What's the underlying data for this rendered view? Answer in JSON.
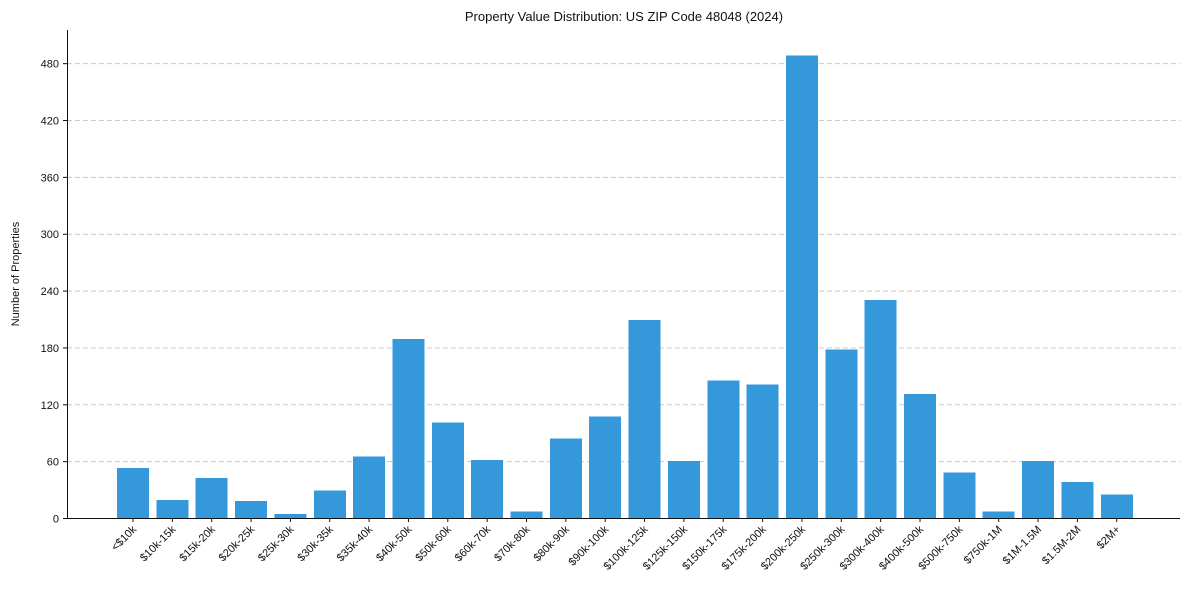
{
  "chart_data": {
    "type": "bar",
    "title": "Property Value Distribution: US ZIP Code 48048 (2024)",
    "xlabel": "",
    "ylabel": "Number of Properties",
    "categories": [
      "<$10k",
      "$10k-15k",
      "$15k-20k",
      "$20k-25k",
      "$25k-30k",
      "$30k-35k",
      "$35k-40k",
      "$40k-50k",
      "$50k-60k",
      "$60k-70k",
      "$70k-80k",
      "$80k-90k",
      "$90k-100k",
      "$100k-125k",
      "$125k-150k",
      "$150k-175k",
      "$175k-200k",
      "$200k-250k",
      "$250k-300k",
      "$300k-400k",
      "$400k-500k",
      "$500k-750k",
      "$750k-1M",
      "$1M-1.5M",
      "$1.5M-2M",
      "$2M+"
    ],
    "values": [
      53,
      19,
      42,
      18,
      4,
      29,
      65,
      189,
      101,
      61,
      7,
      84,
      107,
      209,
      60,
      145,
      141,
      488,
      178,
      230,
      131,
      48,
      7,
      60,
      38,
      25
    ],
    "yticks": [
      0,
      60,
      120,
      180,
      240,
      300,
      360,
      420,
      480
    ],
    "ylim": [
      0,
      515
    ],
    "grid": "y",
    "bar_color": "#3498db"
  }
}
